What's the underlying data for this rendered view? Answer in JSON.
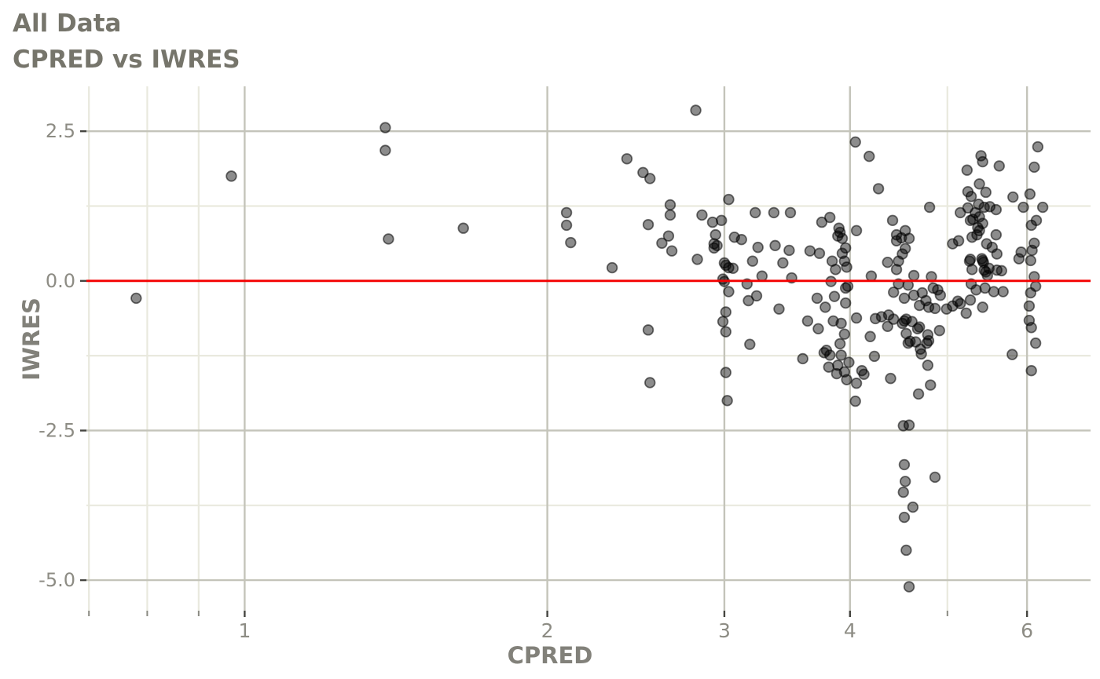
{
  "header": {
    "title": "All Data",
    "subtitle": "CPRED vs IWRES"
  },
  "chart_data": {
    "type": "scatter",
    "title": "All Data",
    "subtitle": "CPRED vs IWRES",
    "xlabel": "CPRED",
    "ylabel": "IWRES",
    "x_scale": "log10",
    "x_domain": [
      0.696,
      6.94
    ],
    "y_domain": [
      -5.51,
      3.25
    ],
    "x_ticks": {
      "values": [
        1,
        2,
        3,
        4,
        6
      ],
      "labels": [
        "1",
        "2",
        "3",
        "4",
        "6"
      ]
    },
    "x_minor": [
      0.7,
      0.8,
      0.9,
      5
    ],
    "y_ticks": {
      "values": [
        2.5,
        0,
        -2.5,
        -5
      ],
      "labels": [
        "2.5",
        "0.0",
        "-2.5",
        "-5.0"
      ]
    },
    "y_minor": [
      1.25,
      -1.25,
      -3.75
    ],
    "reference_line_y": 0,
    "grid": true,
    "legend": "none",
    "colors": {
      "reference_line": "#f40000",
      "grid_major": "#c4c4ba",
      "grid_minor": "#e9e9de",
      "point_fill": "#000000",
      "tick_major": "#454540",
      "tick_minor": "#8a8a82",
      "tick_label": "#8d8c84",
      "background": "#ffffff"
    },
    "points": [
      [
        0.78,
        -0.29
      ],
      [
        0.97,
        1.75
      ],
      [
        1.38,
        2.56
      ],
      [
        1.38,
        2.18
      ],
      [
        1.39,
        0.7
      ],
      [
        1.65,
        0.88
      ],
      [
        2.09,
        1.14
      ],
      [
        2.09,
        0.93
      ],
      [
        2.11,
        0.64
      ],
      [
        2.32,
        0.22
      ],
      [
        2.4,
        2.04
      ],
      [
        2.49,
        1.81
      ],
      [
        2.53,
        1.71
      ],
      [
        2.52,
        0.94
      ],
      [
        2.52,
        -0.82
      ],
      [
        2.53,
        -1.7
      ],
      [
        2.6,
        0.63
      ],
      [
        2.64,
        0.75
      ],
      [
        2.65,
        1.27
      ],
      [
        2.65,
        1.1
      ],
      [
        2.66,
        0.5
      ],
      [
        2.81,
        2.85
      ],
      [
        2.85,
        1.1
      ],
      [
        2.82,
        0.36
      ],
      [
        2.92,
        0.98
      ],
      [
        2.98,
        1.01
      ],
      [
        2.94,
        0.77
      ],
      [
        2.93,
        0.62
      ],
      [
        2.93,
        0.55
      ],
      [
        2.95,
        0.59
      ],
      [
        3.03,
        1.36
      ],
      [
        3.07,
        0.73
      ],
      [
        3.12,
        0.69
      ],
      [
        3.01,
        0.26
      ],
      [
        3.0,
        0.3
      ],
      [
        3.03,
        0.22
      ],
      [
        3.06,
        0.21
      ],
      [
        3.0,
        -0.01
      ],
      [
        2.99,
        0.03
      ],
      [
        3.03,
        -0.18
      ],
      [
        3.01,
        -0.52
      ],
      [
        2.99,
        -0.68
      ],
      [
        3.01,
        -0.85
      ],
      [
        3.01,
        -1.53
      ],
      [
        3.02,
        -2.0
      ],
      [
        3.22,
        1.14
      ],
      [
        3.36,
        1.14
      ],
      [
        3.49,
        1.14
      ],
      [
        3.16,
        -0.05
      ],
      [
        3.17,
        -0.33
      ],
      [
        3.18,
        -1.06
      ],
      [
        3.2,
        0.33
      ],
      [
        3.23,
        -0.25
      ],
      [
        3.24,
        0.56
      ],
      [
        3.27,
        0.08
      ],
      [
        3.37,
        0.59
      ],
      [
        3.4,
        -0.47
      ],
      [
        3.43,
        0.3
      ],
      [
        3.48,
        0.51
      ],
      [
        3.5,
        0.05
      ],
      [
        3.59,
        -1.3
      ],
      [
        3.63,
        -0.67
      ],
      [
        3.65,
        0.5
      ],
      [
        3.71,
        -0.29
      ],
      [
        3.72,
        -0.8
      ],
      [
        3.73,
        0.46
      ],
      [
        3.75,
        0.98
      ],
      [
        3.77,
        -1.2
      ],
      [
        3.79,
        -1.16
      ],
      [
        3.78,
        -0.44
      ],
      [
        3.81,
        -1.44
      ],
      [
        3.82,
        1.06
      ],
      [
        3.82,
        -1.24
      ],
      [
        3.83,
        -0.01
      ],
      [
        3.84,
        0.33
      ],
      [
        3.85,
        -0.67
      ],
      [
        3.86,
        -0.26
      ],
      [
        3.87,
        0.19
      ],
      [
        3.88,
        -1.55
      ],
      [
        3.89,
        -1.41
      ],
      [
        3.9,
        0.88
      ],
      [
        3.91,
        0.81
      ],
      [
        3.89,
        0.75
      ],
      [
        3.93,
        0.71
      ],
      [
        3.96,
        0.55
      ],
      [
        3.93,
        0.46
      ],
      [
        3.92,
        -0.71
      ],
      [
        3.91,
        -1.05
      ],
      [
        3.92,
        -1.24
      ],
      [
        3.95,
        -0.89
      ],
      [
        3.95,
        -1.52
      ],
      [
        3.95,
        0.33
      ],
      [
        3.97,
        0.23
      ],
      [
        3.96,
        -0.12
      ],
      [
        3.98,
        -0.09
      ],
      [
        3.96,
        -0.37
      ],
      [
        3.97,
        -1.65
      ],
      [
        3.99,
        -1.36
      ],
      [
        4.05,
        2.32
      ],
      [
        4.18,
        2.08
      ],
      [
        4.27,
        1.54
      ],
      [
        4.06,
        0.84
      ],
      [
        4.06,
        -0.62
      ],
      [
        4.05,
        -2.01
      ],
      [
        4.06,
        -1.71
      ],
      [
        4.11,
        -1.5
      ],
      [
        4.13,
        -1.56
      ],
      [
        4.19,
        -0.93
      ],
      [
        4.2,
        0.08
      ],
      [
        4.23,
        -1.26
      ],
      [
        4.24,
        -0.63
      ],
      [
        4.3,
        -0.6
      ],
      [
        4.36,
        0.31
      ],
      [
        4.36,
        -0.76
      ],
      [
        4.37,
        -0.57
      ],
      [
        4.39,
        -1.63
      ],
      [
        4.41,
        1.01
      ],
      [
        4.42,
        -0.19
      ],
      [
        4.42,
        -0.64
      ],
      [
        4.45,
        0.19
      ],
      [
        4.45,
        0.77
      ],
      [
        4.45,
        0.67
      ],
      [
        4.47,
        0.33
      ],
      [
        4.47,
        -0.05
      ],
      [
        4.5,
        0.72
      ],
      [
        4.51,
        0.45
      ],
      [
        4.53,
        -0.29
      ],
      [
        4.53,
        -0.67
      ],
      [
        4.55,
        -0.64
      ],
      [
        4.51,
        -0.71
      ],
      [
        4.54,
        0.84
      ],
      [
        4.54,
        0.54
      ],
      [
        4.55,
        -0.88
      ],
      [
        4.57,
        -0.07
      ],
      [
        4.57,
        -1.04
      ],
      [
        4.59,
        -1.01
      ],
      [
        4.58,
        0.71
      ],
      [
        4.61,
        -0.68
      ],
      [
        4.63,
        0.09
      ],
      [
        4.63,
        -0.24
      ],
      [
        4.65,
        -1.02
      ],
      [
        4.67,
        -0.8
      ],
      [
        4.69,
        -0.77
      ],
      [
        4.68,
        -1.89
      ],
      [
        4.7,
        -1.14
      ],
      [
        4.71,
        -1.22
      ],
      [
        4.72,
        -0.2
      ],
      [
        4.52,
        -2.42
      ],
      [
        4.58,
        -2.41
      ],
      [
        4.53,
        -3.07
      ],
      [
        4.54,
        -3.35
      ],
      [
        4.52,
        -3.53
      ],
      [
        4.86,
        -3.28
      ],
      [
        4.62,
        -3.78
      ],
      [
        4.53,
        -3.95
      ],
      [
        4.55,
        -4.5
      ],
      [
        4.58,
        -5.11
      ],
      [
        4.76,
        -0.33
      ],
      [
        4.69,
        -0.41
      ],
      [
        4.78,
        -0.9
      ],
      [
        4.77,
        -1.04
      ],
      [
        4.79,
        -1.0
      ],
      [
        4.78,
        -1.41
      ],
      [
        4.79,
        -0.44
      ],
      [
        4.8,
        1.23
      ],
      [
        4.81,
        -1.74
      ],
      [
        4.82,
        0.07
      ],
      [
        4.84,
        -0.12
      ],
      [
        4.86,
        -0.46
      ],
      [
        4.89,
        -0.15
      ],
      [
        4.91,
        -0.83
      ],
      [
        4.92,
        -0.24
      ],
      [
        4.99,
        -0.47
      ],
      [
        5.06,
        -0.42
      ],
      [
        5.06,
        0.62
      ],
      [
        5.12,
        -0.34
      ],
      [
        5.13,
        0.67
      ],
      [
        5.15,
        -0.38
      ],
      [
        5.15,
        1.14
      ],
      [
        5.22,
        -0.54
      ],
      [
        5.23,
        1.85
      ],
      [
        5.24,
        1.22
      ],
      [
        5.24,
        1.49
      ],
      [
        5.26,
        0.33
      ],
      [
        5.27,
        0.36
      ],
      [
        5.27,
        -0.32
      ],
      [
        5.27,
        1.01
      ],
      [
        5.28,
        1.41
      ],
      [
        5.28,
        -0.05
      ],
      [
        5.29,
        0.19
      ],
      [
        5.29,
        0.73
      ],
      [
        5.3,
        1.03
      ],
      [
        5.33,
        1.14
      ],
      [
        5.34,
        -0.15
      ],
      [
        5.35,
        0.77
      ],
      [
        5.36,
        0.89
      ],
      [
        5.37,
        1.28
      ],
      [
        5.38,
        1.62
      ],
      [
        5.38,
        1.07
      ],
      [
        5.38,
        0.84
      ],
      [
        5.4,
        2.09
      ],
      [
        5.42,
        1.99
      ],
      [
        5.42,
        0.96
      ],
      [
        5.42,
        0.34
      ],
      [
        5.43,
        0.31
      ],
      [
        5.41,
        0.37
      ],
      [
        5.42,
        -0.44
      ],
      [
        5.44,
        1.23
      ],
      [
        5.44,
        0.18
      ],
      [
        5.46,
        0.15
      ],
      [
        5.45,
        -0.12
      ],
      [
        5.46,
        1.48
      ],
      [
        5.47,
        0.62
      ],
      [
        5.48,
        0.09
      ],
      [
        5.5,
        0.21
      ],
      [
        5.51,
        1.24
      ],
      [
        5.54,
        0.56
      ],
      [
        5.56,
        -0.18
      ],
      [
        5.59,
        1.19
      ],
      [
        5.59,
        0.77
      ],
      [
        5.6,
        0.45
      ],
      [
        5.6,
        0.18
      ],
      [
        5.63,
        1.92
      ],
      [
        5.66,
        0.17
      ],
      [
        5.68,
        -0.18
      ],
      [
        5.8,
        -1.23
      ],
      [
        5.81,
        1.4
      ],
      [
        5.89,
        0.37
      ],
      [
        5.92,
        0.48
      ],
      [
        5.95,
        1.23
      ],
      [
        6.03,
        -0.42
      ],
      [
        6.03,
        -0.66
      ],
      [
        6.04,
        1.45
      ],
      [
        6.05,
        0.34
      ],
      [
        6.05,
        -0.2
      ],
      [
        6.06,
        0.93
      ],
      [
        6.06,
        -0.78
      ],
      [
        6.06,
        -1.5
      ],
      [
        6.07,
        0.51
      ],
      [
        6.1,
        1.9
      ],
      [
        6.1,
        0.63
      ],
      [
        6.1,
        0.07
      ],
      [
        6.12,
        -0.09
      ],
      [
        6.12,
        -1.04
      ],
      [
        6.13,
        1.01
      ],
      [
        6.15,
        2.24
      ],
      [
        6.22,
        1.23
      ]
    ]
  }
}
